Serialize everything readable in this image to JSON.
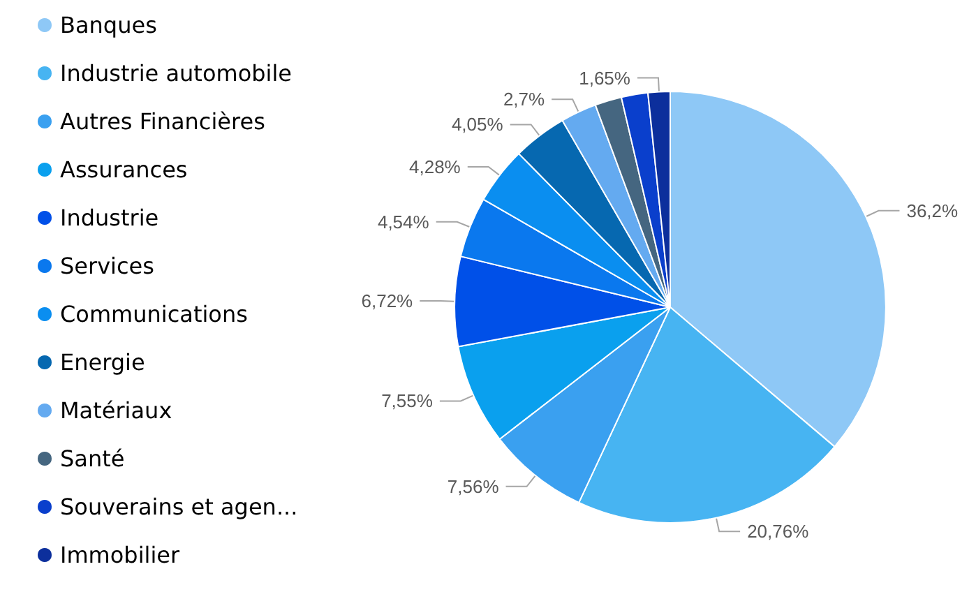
{
  "chart_data": {
    "type": "pie",
    "categories": [
      "Banques",
      "Industrie automobile",
      "Autres Financières",
      "Assurances",
      "Industrie",
      "Services",
      "Communications",
      "Energie",
      "Matériaux",
      "Santé",
      "Souverains et agen...",
      "Immobilier"
    ],
    "values": [
      36.2,
      20.76,
      7.56,
      7.55,
      6.72,
      4.54,
      4.28,
      4.05,
      2.7,
      2.0,
      1.99,
      1.65
    ],
    "value_labels": [
      "36,2%",
      "20,76%",
      "7,56%",
      "7,55%",
      "6,72%",
      "4,54%",
      "4,28%",
      "4,05%",
      "2,7%",
      null,
      null,
      "1,65%"
    ],
    "colors": [
      "#8ec8f6",
      "#47b4f2",
      "#3aa0f0",
      "#0aa0ee",
      "#0050e8",
      "#0a78ee",
      "#0a8ef0",
      "#0668b0",
      "#64aaf0",
      "#456680",
      "#0a3fcc",
      "#0c2f9c"
    ],
    "legend": "left"
  }
}
